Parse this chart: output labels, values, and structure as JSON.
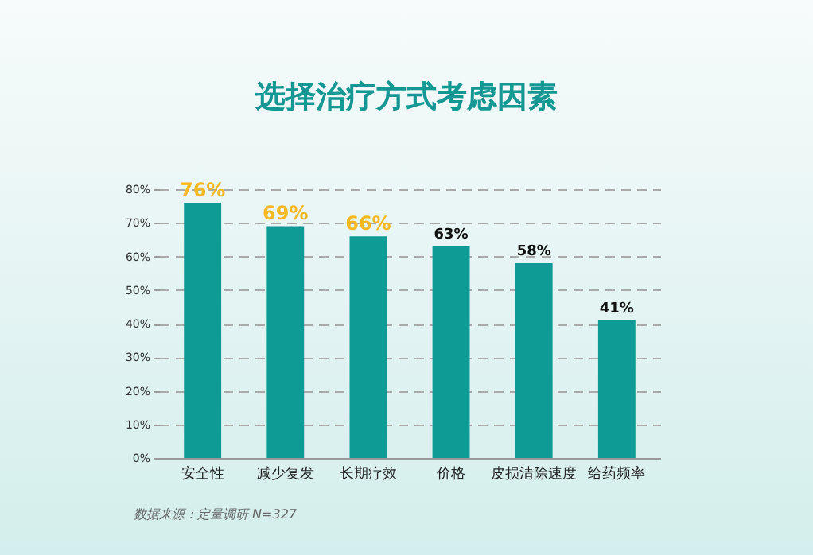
{
  "chart_data": {
    "type": "bar",
    "title": "选择治疗方式考虑因素",
    "categories": [
      "安全性",
      "减少复发",
      "长期疗效",
      "价格",
      "皮损清除速度",
      "给药频率"
    ],
    "values": [
      76,
      69,
      66,
      63,
      58,
      41
    ],
    "value_labels": [
      "76%",
      "69%",
      "66%",
      "63%",
      "58%",
      "41%"
    ],
    "color": "#0e9a95",
    "ylim": [
      0,
      80
    ],
    "yticks": [
      {
        "value": 0,
        "label": "0%"
      },
      {
        "value": 10,
        "label": "10%"
      },
      {
        "value": 20,
        "label": "20%"
      },
      {
        "value": 30,
        "label": "30%"
      },
      {
        "value": 40,
        "label": "40%"
      },
      {
        "value": 50,
        "label": "50%"
      },
      {
        "value": 60,
        "label": "60%"
      },
      {
        "value": 70,
        "label": "70%"
      },
      {
        "value": 80,
        "label": "80%"
      }
    ],
    "grid": "y",
    "annotations": [
      "数据来源：定量调研 N=327"
    ]
  }
}
